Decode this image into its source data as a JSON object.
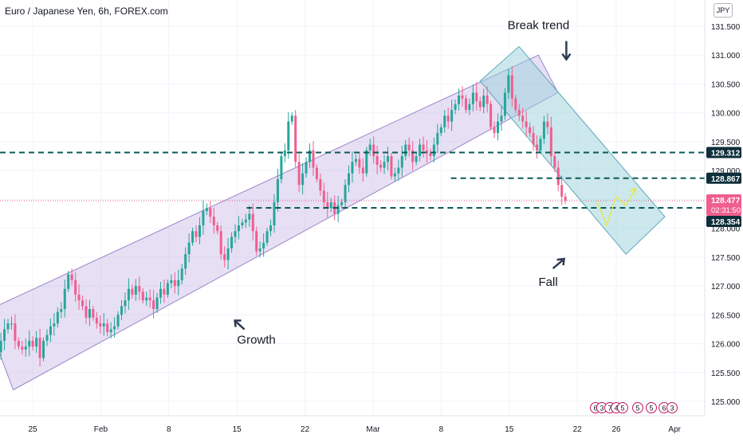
{
  "title": "Euro / Japanese Yen, 6h, FOREX.com",
  "currency": "JPY",
  "colors": {
    "up": "#26a69a",
    "down": "#ef5e8f",
    "channel_fill": "#c9b8e6",
    "channel_stroke": "#9a86c8",
    "fall_fill": "#9ad1dc",
    "fall_stroke": "#5ea7b8",
    "dash_line": "#0b5a57",
    "forecast": "#e5e84f",
    "text": "#131722"
  },
  "chart_data": {
    "type": "candlestick",
    "title": "Euro / Japanese Yen, 6h, FOREX.com",
    "ylim": [
      124.8,
      131.85
    ],
    "y_ticks": [
      125.0,
      125.5,
      126.0,
      126.5,
      127.0,
      127.5,
      128.0,
      128.5,
      129.0,
      129.5,
      130.0,
      130.5,
      131.0,
      131.5
    ],
    "y_tick_labels": [
      "125.000",
      "125.500",
      "126.000",
      "126.500",
      "127.000",
      "127.500",
      "128.000",
      "128.500",
      "129.000",
      "129.500",
      "130.000",
      "130.500",
      "131.000",
      "131.500"
    ],
    "x_tick_labels": [
      "25",
      "Feb",
      "8",
      "15",
      "22",
      "Mar",
      "8",
      "15",
      "22",
      "26",
      "Apr"
    ],
    "x_ticks": [
      {
        "label": "25",
        "date": "2021-01-25"
      },
      {
        "label": "Feb",
        "date": "2021-02-01"
      },
      {
        "label": "8",
        "date": "2021-02-08"
      },
      {
        "label": "15",
        "date": "2021-02-15"
      },
      {
        "label": "22",
        "date": "2021-02-22"
      },
      {
        "label": "Mar",
        "date": "2021-03-01"
      },
      {
        "label": "8",
        "date": "2021-03-08"
      },
      {
        "label": "15",
        "date": "2021-03-15"
      },
      {
        "label": "22",
        "date": "2021-03-22"
      },
      {
        "label": "26",
        "date": "2021-03-26"
      },
      {
        "label": "Apr",
        "date": "2021-04-01"
      }
    ],
    "closes": [
      125.65,
      125.85,
      126.05,
      126.25,
      126.35,
      126.35,
      126.05,
      125.95,
      125.9,
      125.95,
      126.05,
      125.95,
      126.1,
      125.75,
      126.05,
      126.15,
      126.3,
      126.35,
      126.55,
      126.6,
      126.95,
      127.2,
      127.1,
      126.85,
      126.75,
      126.65,
      126.45,
      126.6,
      126.45,
      126.35,
      126.3,
      126.35,
      126.2,
      126.25,
      126.3,
      126.5,
      126.65,
      126.75,
      126.95,
      126.85,
      127.0,
      126.9,
      126.75,
      126.8,
      126.75,
      126.6,
      126.8,
      126.95,
      126.85,
      127.05,
      127.1,
      127.0,
      127.1,
      127.3,
      127.55,
      127.75,
      127.95,
      127.85,
      128.05,
      128.3,
      128.35,
      128.2,
      128.05,
      127.95,
      127.55,
      127.45,
      127.65,
      127.85,
      127.95,
      128.05,
      128.1,
      128.15,
      128.25,
      127.95,
      127.6,
      127.65,
      127.75,
      127.95,
      128.05,
      128.45,
      128.85,
      129.25,
      129.35,
      129.85,
      129.95,
      129.15,
      128.75,
      128.95,
      129.15,
      129.35,
      129.05,
      128.85,
      128.65,
      128.45,
      128.35,
      128.45,
      128.25,
      128.4,
      128.45,
      128.75,
      128.95,
      129.15,
      129.2,
      129.05,
      128.95,
      129.35,
      129.45,
      129.25,
      129.1,
      129.05,
      129.15,
      129.25,
      128.9,
      128.95,
      129.05,
      129.25,
      129.45,
      129.35,
      129.15,
      129.25,
      129.45,
      129.35,
      129.3,
      129.25,
      129.45,
      129.65,
      129.75,
      129.95,
      129.85,
      130.05,
      130.15,
      130.3,
      130.25,
      130.05,
      130.15,
      130.35,
      130.2,
      130.1,
      130.3,
      130.15,
      129.75,
      129.65,
      129.85,
      129.95,
      130.35,
      130.65,
      130.25,
      130.05,
      129.95,
      129.85,
      129.75,
      129.65,
      129.45,
      129.35,
      129.55,
      129.85,
      129.75,
      129.25,
      129.05,
      128.75,
      128.55,
      128.477
    ],
    "open_first": 125.45,
    "channels": [
      {
        "name": "Growth",
        "corners": [
          [
            "2021-01-20",
            126.55
          ],
          [
            "2021-03-18",
            131.0
          ],
          [
            "2021-03-20",
            130.35
          ],
          [
            "2021-01-23",
            125.2
          ]
        ]
      },
      {
        "name": "Fall",
        "corners": [
          [
            "2021-03-12",
            130.55
          ],
          [
            "2021-03-16",
            131.15
          ],
          [
            "2021-03-31",
            128.2
          ],
          [
            "2021-03-27",
            127.55
          ]
        ]
      }
    ],
    "horizontal_levels": [
      129.312,
      128.867,
      128.354
    ],
    "forecast_path": [
      [
        "2021-03-24",
        128.477
      ],
      [
        "2021-03-25",
        128.05
      ],
      [
        "2021-03-26",
        128.55
      ],
      [
        "2021-03-27",
        128.4
      ],
      [
        "2021-03-28",
        128.7
      ]
    ],
    "annotations": [
      {
        "text": "Break trend",
        "date": "2021-03-18",
        "y": 131.45,
        "arrow": "down"
      },
      {
        "text": "Growth",
        "date": "2021-02-17",
        "y": 126.0,
        "arrow": "up-left"
      },
      {
        "text": "Fall",
        "date": "2021-03-19",
        "y": 127.0,
        "arrow": "up-right"
      }
    ],
    "price_labels": [
      {
        "value": "129.312",
        "kind": "level"
      },
      {
        "value": "128.867",
        "kind": "level"
      },
      {
        "value": "128.477",
        "kind": "last",
        "sub": "02:31:50"
      },
      {
        "value": "128.354",
        "kind": "level"
      }
    ],
    "event_markers": [
      "6",
      "3",
      "7",
      "4",
      "5",
      "5",
      "5",
      "6",
      "3"
    ]
  }
}
